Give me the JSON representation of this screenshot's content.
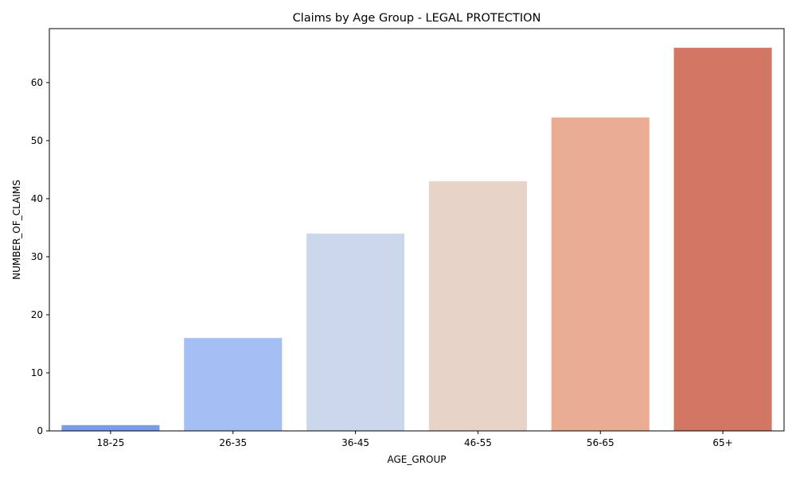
{
  "chart_data": {
    "type": "bar",
    "title": "Claims by Age Group - LEGAL PROTECTION",
    "xlabel": "AGE_GROUP",
    "ylabel": "NUMBER_OF_CLAIMS",
    "categories": [
      "18-25",
      "26-35",
      "36-45",
      "46-55",
      "56-65",
      "65+"
    ],
    "values": [
      1,
      16,
      34,
      43,
      54,
      66
    ],
    "colors": [
      "#7a9aea",
      "#a4bff4",
      "#cbd8ec",
      "#e8d3c8",
      "#eaad94",
      "#d27763"
    ],
    "ylim": [
      0,
      69.3
    ],
    "yticks": [
      0,
      10,
      20,
      30,
      40,
      50,
      60
    ],
    "grid": false,
    "legend": "none"
  }
}
